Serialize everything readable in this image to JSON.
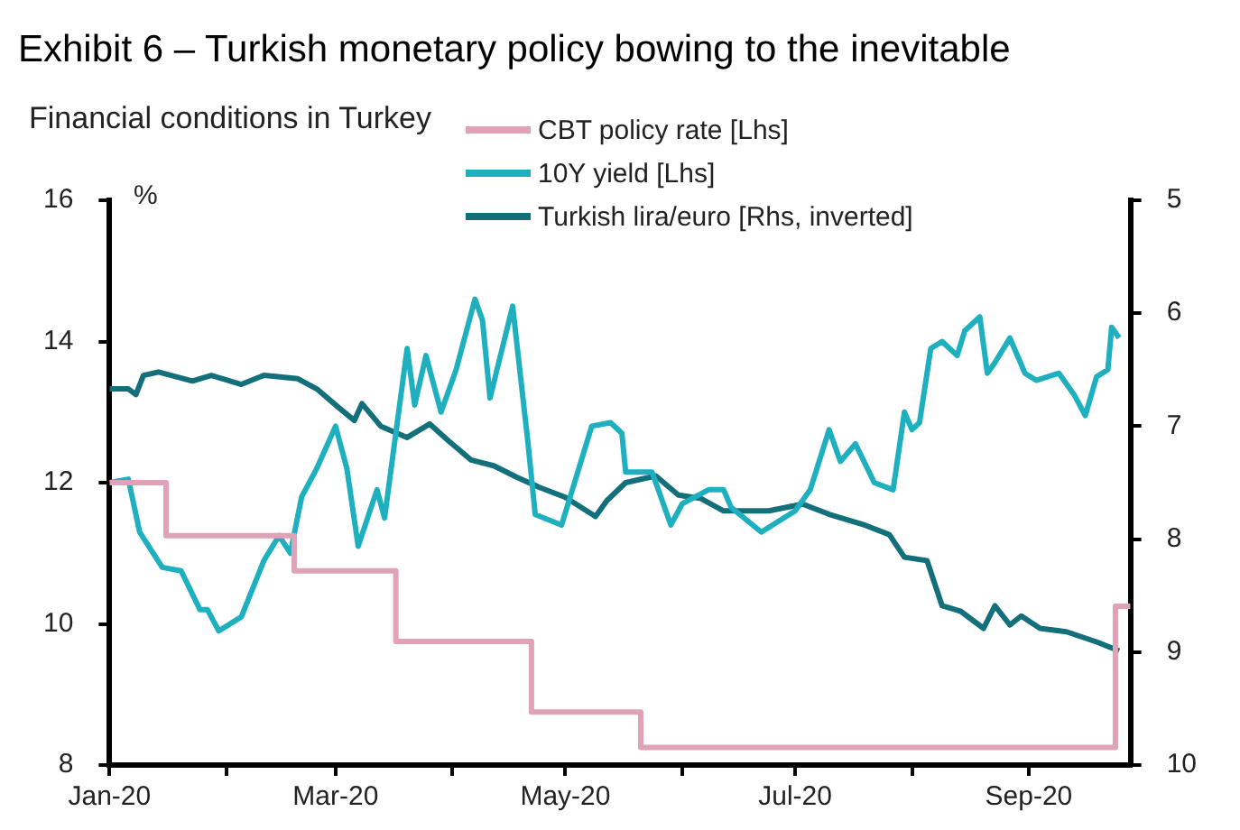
{
  "chart_data": {
    "type": "line",
    "title": "Exhibit 6 – Turkish monetary policy bowing to the inevitable",
    "subtitle": "Financial conditions in Turkey",
    "ylabel": "%",
    "xlim": [
      "2020-01-01",
      "2020-09-28"
    ],
    "xticks": [
      {
        "value": "2020-01-01",
        "label": "Jan-20"
      },
      {
        "value": "2020-02-01",
        "label": null
      },
      {
        "value": "2020-03-01",
        "label": "Mar-20"
      },
      {
        "value": "2020-04-01",
        "label": null
      },
      {
        "value": "2020-05-01",
        "label": "May-20"
      },
      {
        "value": "2020-06-01",
        "label": null
      },
      {
        "value": "2020-07-01",
        "label": "Jul-20"
      },
      {
        "value": "2020-08-01",
        "label": null
      },
      {
        "value": "2020-09-01",
        "label": "Sep-20"
      }
    ],
    "ylim": [
      8,
      16
    ],
    "yticks": [
      8,
      10,
      12,
      14,
      16
    ],
    "y2lim": [
      10,
      5
    ],
    "y2ticks": [
      5,
      6,
      7,
      8,
      9,
      10
    ],
    "legend": "top right",
    "grid": false,
    "series": [
      {
        "name": "CBT policy rate [Lhs]",
        "type": "step",
        "color": "#e0a2b5",
        "x": [
          "2020-01-01",
          "2020-01-16",
          "2020-02-19",
          "2020-03-17",
          "2020-04-22",
          "2020-05-21",
          "2020-09-24",
          "2020-09-28"
        ],
        "values": [
          12,
          11.25,
          10.75,
          9.75,
          8.75,
          8.25,
          10.25,
          10.25
        ]
      },
      {
        "name": "10Y yield [Lhs]",
        "type": "line",
        "color": "#1fb0bf",
        "x": [
          "2020-01-01",
          "2020-01-06",
          "2020-01-09",
          "2020-01-15",
          "2020-01-20",
          "2020-01-25",
          "2020-01-27",
          "2020-01-30",
          "2020-02-02",
          "2020-02-05",
          "2020-02-11",
          "2020-02-15",
          "2020-02-18",
          "2020-02-21",
          "2020-02-25",
          "2020-03-01",
          "2020-03-04",
          "2020-03-07",
          "2020-03-12",
          "2020-03-14",
          "2020-03-16",
          "2020-03-20",
          "2020-03-22",
          "2020-03-25",
          "2020-03-29",
          "2020-04-02",
          "2020-04-07",
          "2020-04-09",
          "2020-04-11",
          "2020-04-17",
          "2020-04-21",
          "2020-04-23",
          "2020-04-30",
          "2020-05-08",
          "2020-05-13",
          "2020-05-16",
          "2020-05-17",
          "2020-05-24",
          "2020-05-29",
          "2020-06-01",
          "2020-06-08",
          "2020-06-12",
          "2020-06-14",
          "2020-06-22",
          "2020-07-01",
          "2020-07-05",
          "2020-07-10",
          "2020-07-13",
          "2020-07-17",
          "2020-07-22",
          "2020-07-27",
          "2020-07-30",
          "2020-08-01",
          "2020-08-03",
          "2020-08-06",
          "2020-08-09",
          "2020-08-13",
          "2020-08-15",
          "2020-08-19",
          "2020-08-21",
          "2020-08-23",
          "2020-08-27",
          "2020-08-31",
          "2020-09-03",
          "2020-09-09",
          "2020-09-13",
          "2020-09-16",
          "2020-09-19",
          "2020-09-22",
          "2020-09-23",
          "2020-09-25"
        ],
        "values": [
          12,
          12.05,
          11.3,
          10.8,
          10.75,
          10.2,
          10.2,
          9.9,
          10,
          10.1,
          10.9,
          11.25,
          11,
          11.8,
          12.2,
          12.8,
          12.2,
          11.1,
          11.9,
          11.5,
          12.3,
          13.9,
          13.1,
          13.8,
          13,
          13.6,
          14.6,
          14.3,
          13.2,
          14.5,
          12.6,
          11.55,
          11.4,
          12.8,
          12.85,
          12.7,
          12.15,
          12.15,
          11.4,
          11.7,
          11.9,
          11.9,
          11.65,
          11.3,
          11.6,
          11.9,
          12.75,
          12.3,
          12.55,
          12,
          11.9,
          13,
          12.75,
          12.85,
          13.9,
          14,
          13.8,
          14.15,
          14.35,
          13.55,
          13.7,
          14.05,
          13.55,
          13.45,
          13.55,
          13.25,
          12.95,
          13.5,
          13.6,
          14.2,
          14.05
        ]
      },
      {
        "name": "Turkish lira/euro [Rhs, inverted]",
        "type": "line",
        "axis": "y2",
        "color": "#13707a",
        "x": [
          "2020-01-01",
          "2020-01-06",
          "2020-01-08",
          "2020-01-10",
          "2020-01-14",
          "2020-01-23",
          "2020-01-28",
          "2020-02-05",
          "2020-02-11",
          "2020-02-20",
          "2020-02-25",
          "2020-03-02",
          "2020-03-06",
          "2020-03-08",
          "2020-03-13",
          "2020-03-20",
          "2020-03-26",
          "2020-03-31",
          "2020-04-06",
          "2020-04-12",
          "2020-04-18",
          "2020-04-24",
          "2020-05-01",
          "2020-05-09",
          "2020-05-12",
          "2020-05-17",
          "2020-05-25",
          "2020-05-31",
          "2020-06-06",
          "2020-06-12",
          "2020-06-18",
          "2020-06-24",
          "2020-07-03",
          "2020-07-10",
          "2020-07-19",
          "2020-07-26",
          "2020-07-30",
          "2020-08-05",
          "2020-08-09",
          "2020-08-14",
          "2020-08-20",
          "2020-08-23",
          "2020-08-27",
          "2020-08-30",
          "2020-09-04",
          "2020-09-11",
          "2020-09-19",
          "2020-09-25"
        ],
        "values": [
          6.67,
          6.67,
          6.72,
          6.55,
          6.52,
          6.6,
          6.55,
          6.63,
          6.55,
          6.58,
          6.67,
          6.84,
          6.95,
          6.8,
          7,
          7.1,
          6.98,
          7.13,
          7.3,
          7.35,
          7.45,
          7.54,
          7.63,
          7.8,
          7.66,
          7.5,
          7.44,
          7.61,
          7.64,
          7.75,
          7.75,
          7.75,
          7.69,
          7.78,
          7.87,
          7.96,
          8.16,
          8.19,
          8.59,
          8.64,
          8.79,
          8.59,
          8.76,
          8.68,
          8.79,
          8.82,
          8.91,
          8.99
        ]
      }
    ]
  }
}
